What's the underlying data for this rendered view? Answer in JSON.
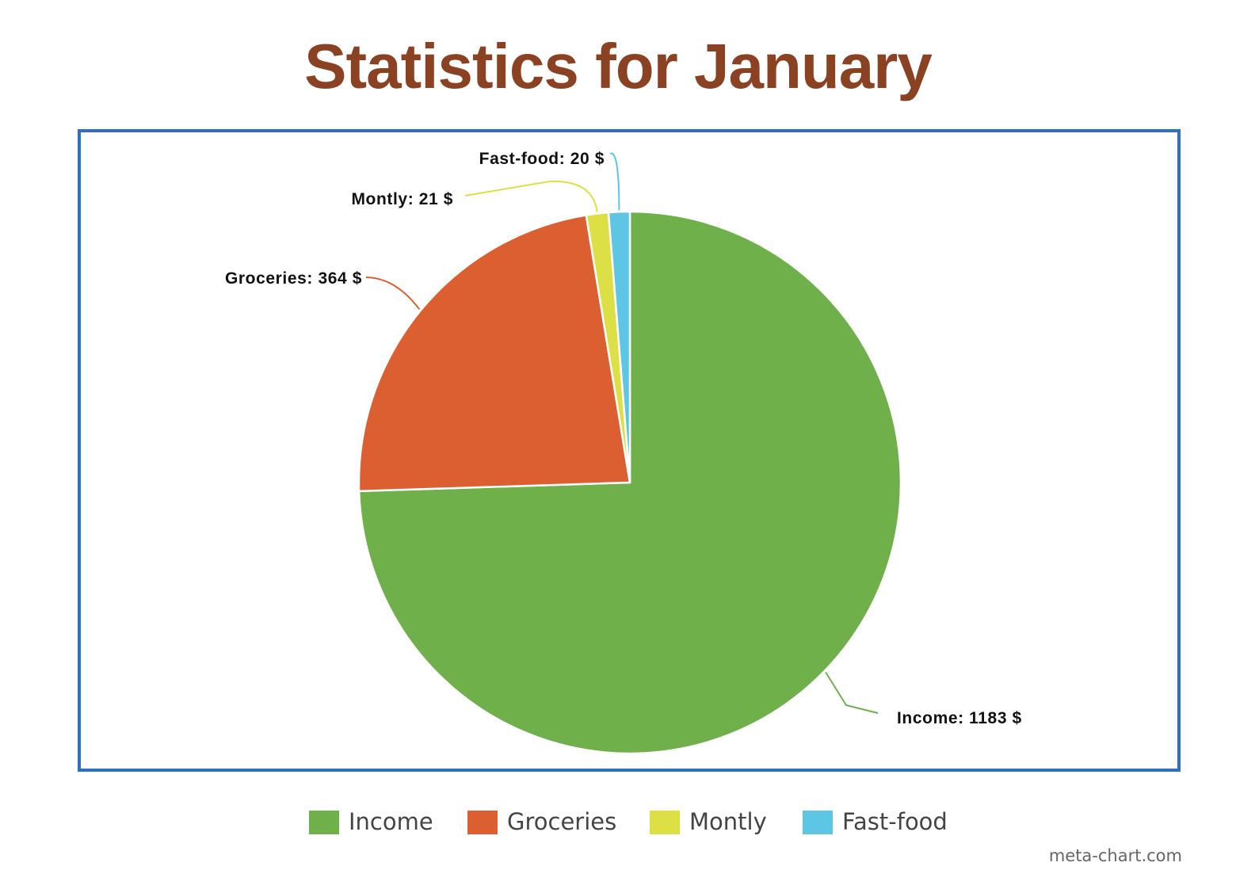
{
  "chart_data": {
    "type": "pie",
    "title": "Statistics for January",
    "slices": [
      {
        "name": "Income",
        "value": 1183,
        "label": "Income: 1183 $",
        "color": "#70b04b"
      },
      {
        "name": "Groceries",
        "value": 364,
        "label": "Groceries: 364 $",
        "color": "#dc5f32"
      },
      {
        "name": "Montly",
        "value": 21,
        "label": "Montly: 21 $",
        "color": "#dde044"
      },
      {
        "name": "Fast-food",
        "value": 20,
        "label": "Fast-food: 20 $",
        "color": "#5cc6e4"
      }
    ],
    "legend_position": "bottom-center",
    "start_angle": "12 o'clock, clockwise"
  },
  "credit": "meta-chart.com",
  "colors": {
    "title": "#8a4223",
    "frame_border": "#2f6fbd"
  }
}
